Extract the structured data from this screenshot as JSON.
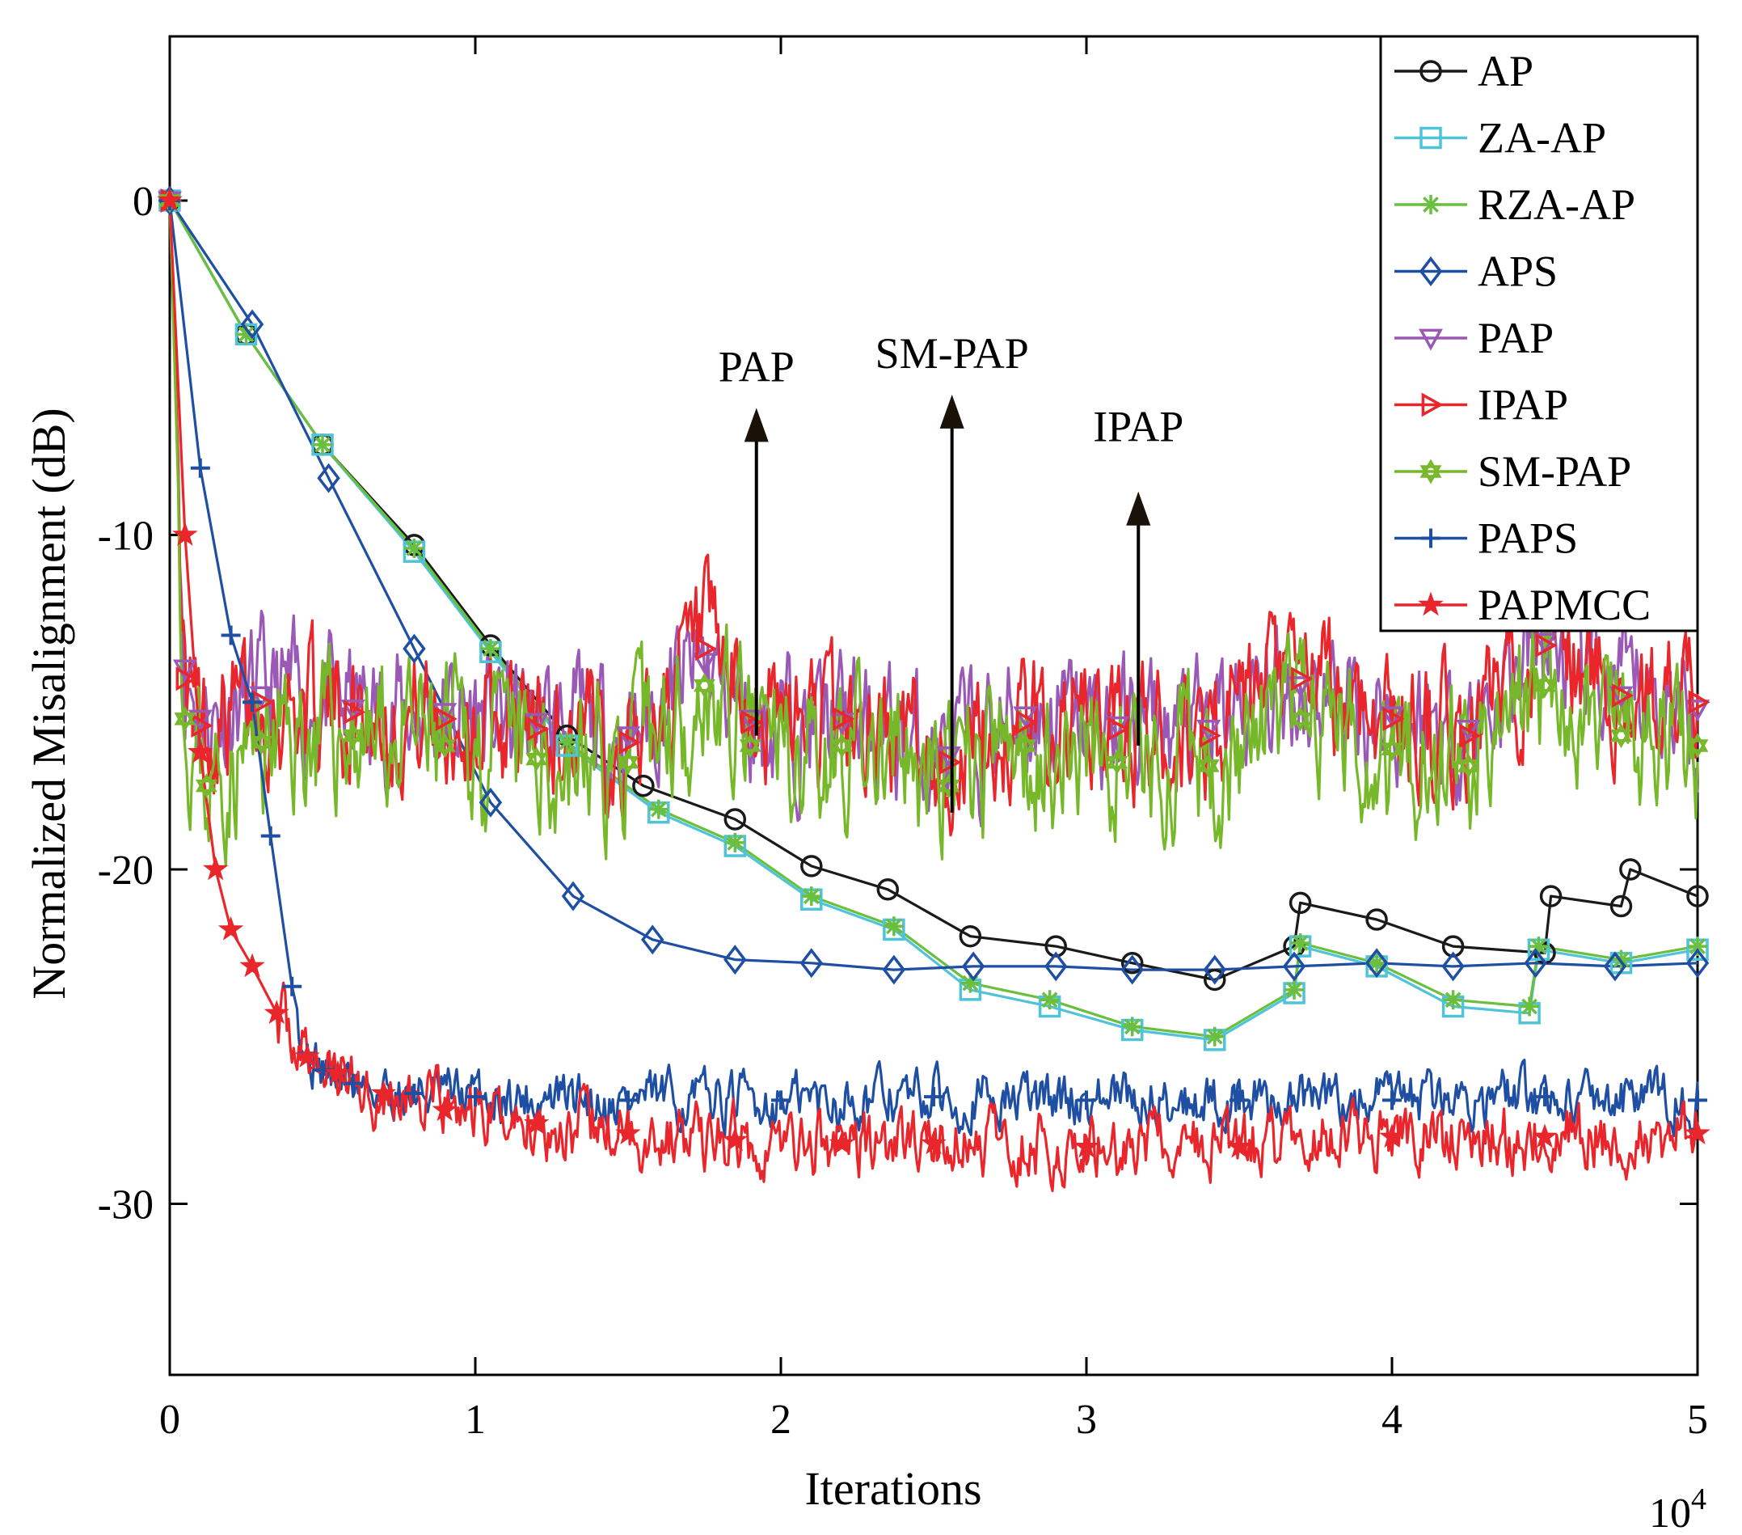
{
  "chart_data": {
    "type": "line",
    "title": "",
    "xlabel": "Iterations",
    "ylabel": "Normalized Misalignment (dB)",
    "x_exponent_base": "10",
    "x_exponent_power": "4",
    "xlim": [
      0,
      5
    ],
    "ylim": [
      -35,
      5
    ],
    "xticks": [
      0,
      1,
      2,
      3,
      4,
      5
    ],
    "xtick_labels": [
      "0",
      "1",
      "2",
      "3",
      "4",
      "5"
    ],
    "yticks": [
      0,
      -10,
      -20,
      -30
    ],
    "ytick_labels": [
      "0",
      "-10",
      "-20",
      "-30"
    ],
    "grid": false,
    "legend_position": "top-right",
    "series": [
      {
        "name": "AP",
        "color": "#1a1a1a",
        "marker": "circle",
        "x": [
          0,
          0.25,
          0.5,
          0.8,
          1.05,
          1.3,
          1.55,
          1.85,
          2.1,
          2.35,
          2.62,
          2.9,
          3.15,
          3.42,
          3.68,
          3.7,
          3.95,
          4.2,
          4.5,
          4.52,
          4.75,
          4.78,
          5.0
        ],
        "y": [
          0,
          -4,
          -7.3,
          -10.3,
          -13.3,
          -16,
          -17.5,
          -18.5,
          -19.9,
          -20.6,
          -22,
          -22.3,
          -22.8,
          -23.3,
          -22.3,
          -21,
          -21.5,
          -22.3,
          -22.5,
          -20.8,
          -21.1,
          -20,
          -20.8
        ]
      },
      {
        "name": "ZA-AP",
        "color": "#4fc3d8",
        "marker": "square",
        "x": [
          0,
          0.25,
          0.5,
          0.8,
          1.05,
          1.3,
          1.6,
          1.85,
          2.1,
          2.37,
          2.62,
          2.88,
          3.15,
          3.42,
          3.68,
          3.7,
          3.95,
          4.2,
          4.45,
          4.48,
          4.75,
          5.0
        ],
        "y": [
          0,
          -4,
          -7.3,
          -10.5,
          -13.5,
          -16.3,
          -18.3,
          -19.3,
          -20.9,
          -21.8,
          -23.6,
          -24.1,
          -24.8,
          -25.1,
          -23.7,
          -22.3,
          -22.9,
          -24.1,
          -24.3,
          -22.4,
          -22.8,
          -22.4
        ]
      },
      {
        "name": "RZA-AP",
        "color": "#6abf3f",
        "marker": "asterisk",
        "x": [
          0,
          0.25,
          0.5,
          0.8,
          1.05,
          1.3,
          1.6,
          1.85,
          2.1,
          2.37,
          2.62,
          2.88,
          3.15,
          3.42,
          3.68,
          3.7,
          3.95,
          4.2,
          4.45,
          4.48,
          4.75,
          5.0
        ],
        "y": [
          0,
          -4,
          -7.3,
          -10.4,
          -13.4,
          -16.2,
          -18.2,
          -19.2,
          -20.8,
          -21.7,
          -23.4,
          -23.9,
          -24.7,
          -25,
          -23.6,
          -22.2,
          -22.8,
          -23.9,
          -24.1,
          -22.3,
          -22.7,
          -22.3
        ]
      },
      {
        "name": "APS",
        "color": "#1f4fa3",
        "marker": "diamond",
        "x": [
          0,
          0.27,
          0.52,
          0.8,
          1.05,
          1.32,
          1.58,
          1.85,
          2.1,
          2.37,
          2.63,
          2.9,
          3.15,
          3.42,
          3.68,
          3.95,
          4.2,
          4.47,
          4.73,
          5.0
        ],
        "y": [
          0,
          -3.7,
          -8.3,
          -13.4,
          -18,
          -20.8,
          -22.1,
          -22.7,
          -22.8,
          -23,
          -22.9,
          -22.9,
          -23,
          -23,
          -22.9,
          -22.8,
          -22.9,
          -22.8,
          -22.9,
          -22.8
        ]
      },
      {
        "name": "PAP",
        "color": "#9b59b6",
        "marker": "triangle-down",
        "x": [
          0,
          0.05,
          0.1,
          0.3,
          0.6,
          0.9,
          1.2,
          1.5,
          1.75,
          1.9,
          2.2,
          2.55,
          2.8,
          3.1,
          3.4,
          3.7,
          4.0,
          4.25,
          4.5,
          4.75,
          5.0
        ],
        "y": [
          0,
          -14,
          -15.5,
          -14.8,
          -15.2,
          -15.3,
          -15.6,
          -16,
          -13.8,
          -15.5,
          -15.6,
          -16.6,
          -15.4,
          -15.7,
          -15.8,
          -14.5,
          -15.4,
          -15.8,
          -13.2,
          -14.8,
          -15.2
        ]
      },
      {
        "name": "IPAP",
        "color": "#e8262b",
        "marker": "triangle-right",
        "x": [
          0,
          0.05,
          0.1,
          0.3,
          0.6,
          0.9,
          1.2,
          1.5,
          1.75,
          1.9,
          2.2,
          2.55,
          2.8,
          3.1,
          3.4,
          3.7,
          4.0,
          4.25,
          4.5,
          4.75,
          5.0
        ],
        "y": [
          0,
          -14.3,
          -15.7,
          -15,
          -15.3,
          -15.5,
          -15.8,
          -16.2,
          -13.4,
          -15.6,
          -15.5,
          -16.8,
          -15.6,
          -15.8,
          -16,
          -14.3,
          -15.5,
          -16,
          -13.3,
          -14.8,
          -15
        ]
      },
      {
        "name": "SM-PAP",
        "color": "#76b82a",
        "marker": "hexagram",
        "x": [
          0,
          0.05,
          0.12,
          0.3,
          0.6,
          0.9,
          1.2,
          1.5,
          1.75,
          1.9,
          2.2,
          2.55,
          2.8,
          3.1,
          3.4,
          3.7,
          4.0,
          4.25,
          4.5,
          4.75,
          5.0
        ],
        "y": [
          0,
          -15.5,
          -17.5,
          -16.2,
          -16,
          -16.3,
          -16.7,
          -16.8,
          -14.5,
          -16.3,
          -16.3,
          -17.5,
          -16.3,
          -16.8,
          -16.9,
          -15.5,
          -16.4,
          -16.9,
          -14.5,
          -16,
          -16.3
        ]
      },
      {
        "name": "PAPS",
        "color": "#1f4fa3",
        "marker": "plus",
        "x": [
          0,
          0.1,
          0.2,
          0.27,
          0.33,
          0.4,
          0.45,
          0.5,
          0.6,
          0.8,
          1.0,
          1.5,
          2.0,
          2.5,
          3.0,
          3.5,
          4.0,
          4.5,
          5.0
        ],
        "y": [
          0,
          -8,
          -13,
          -15,
          -19,
          -23.5,
          -25.5,
          -26,
          -26.4,
          -26.7,
          -26.8,
          -26.9,
          -26.9,
          -26.8,
          -26.9,
          -26.9,
          -26.9,
          -26.8,
          -26.9
        ]
      },
      {
        "name": "PAPMCC",
        "color": "#e8262b",
        "marker": "star",
        "x": [
          0,
          0.05,
          0.1,
          0.15,
          0.2,
          0.27,
          0.35,
          0.45,
          0.55,
          0.7,
          0.9,
          1.2,
          1.5,
          1.85,
          2.2,
          2.5,
          3.0,
          3.5,
          4.0,
          4.5,
          5.0
        ],
        "y": [
          0,
          -10,
          -16.5,
          -20,
          -21.8,
          -22.9,
          -24.3,
          -25.6,
          -26.1,
          -26.7,
          -27.2,
          -27.6,
          -27.9,
          -28.1,
          -28.2,
          -28.2,
          -28.3,
          -28.3,
          -28,
          -28,
          -27.9
        ]
      }
    ],
    "annotations": [
      {
        "text": "PAP",
        "arrow_x": 1.92,
        "arrow_from_y": -16,
        "arrow_to_y": -6.2,
        "text_y": -5.4
      },
      {
        "text": "SM-PAP",
        "arrow_x": 2.56,
        "arrow_from_y": -18.3,
        "arrow_to_y": -5.8,
        "text_y": -5.0
      },
      {
        "text": "IPAP",
        "arrow_x": 3.17,
        "arrow_from_y": -16.3,
        "arrow_to_y": -8.7,
        "text_y": -7.2
      }
    ]
  }
}
